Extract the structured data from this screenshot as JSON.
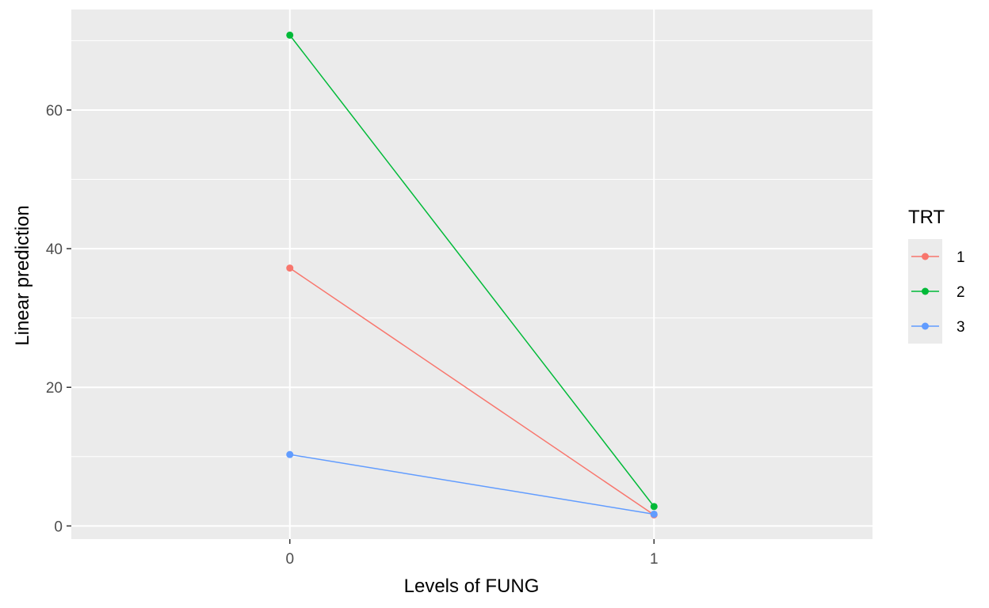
{
  "chart_data": {
    "type": "line",
    "title": "",
    "xlabel": "Levels of FUNG",
    "ylabel": "Linear prediction",
    "categories": [
      "0",
      "1"
    ],
    "ylim": [
      -1.9,
      74.5
    ],
    "yticks": [
      0,
      20,
      40,
      60
    ],
    "ytick_labels": [
      "0",
      "20",
      "40",
      "60"
    ],
    "grid": true,
    "legend": {
      "title": "TRT",
      "placement": "right"
    },
    "series": [
      {
        "name": "1",
        "color": "#F8766D",
        "values": [
          37.2,
          1.6
        ]
      },
      {
        "name": "2",
        "color": "#00BA38",
        "values": [
          70.8,
          2.8
        ]
      },
      {
        "name": "3",
        "color": "#619CFF",
        "values": [
          10.3,
          1.7
        ]
      }
    ],
    "panel_background": "#EBEBEB",
    "grid_color": "#FFFFFF"
  }
}
